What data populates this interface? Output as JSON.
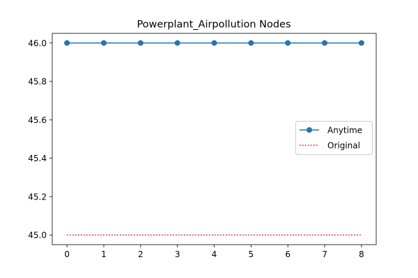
{
  "chart_data": {
    "type": "line",
    "title": "Powerplant_Airpollution Nodes",
    "xlabel": "",
    "ylabel": "",
    "x": [
      0,
      1,
      2,
      3,
      4,
      5,
      6,
      7,
      8
    ],
    "xlim": [
      -0.4,
      8.4
    ],
    "ylim": [
      44.95,
      46.05
    ],
    "xticks": [
      0,
      1,
      2,
      3,
      4,
      5,
      6,
      7,
      8
    ],
    "xtick_labels": [
      "0",
      "1",
      "2",
      "3",
      "4",
      "5",
      "6",
      "7",
      "8"
    ],
    "yticks": [
      45.0,
      45.2,
      45.4,
      45.6,
      45.8,
      46.0
    ],
    "ytick_labels": [
      "45.0",
      "45.2",
      "45.4",
      "45.6",
      "45.8",
      "46.0"
    ],
    "grid": false,
    "legend_position": "center-right",
    "series": [
      {
        "name": "Anytime",
        "values": [
          46,
          46,
          46,
          46,
          46,
          46,
          46,
          46,
          46
        ],
        "color": "#1f77b4",
        "style": "solid",
        "marker": "circle"
      },
      {
        "name": "Original",
        "values": [
          45,
          45,
          45,
          45,
          45,
          45,
          45,
          45,
          45
        ],
        "color": "#ff0000",
        "style": "dotted",
        "marker": "none"
      }
    ]
  }
}
